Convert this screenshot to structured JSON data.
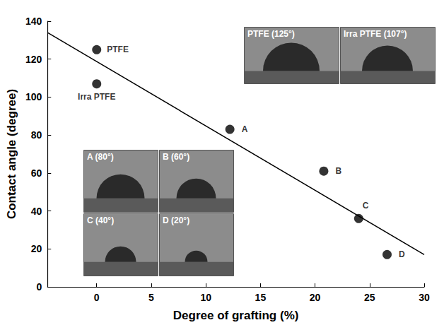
{
  "chart_data": {
    "type": "scatter",
    "x_label": "Degree of grafting (%)",
    "y_label": "Contact angle (degree)",
    "points": [
      {
        "label": "PTFE",
        "x": 0,
        "y": 125
      },
      {
        "label": "Irra PTFE",
        "x": 0,
        "y": 107
      },
      {
        "label": "A",
        "x": 12.2,
        "y": 83
      },
      {
        "label": "B",
        "x": 20.8,
        "y": 61
      },
      {
        "label": "C",
        "x": 24,
        "y": 36
      },
      {
        "label": "D",
        "x": 26.6,
        "y": 17
      }
    ],
    "color": "#000000",
    "marker": "circle",
    "trend_line": {
      "x": [
        -4.5,
        30
      ],
      "y": [
        134,
        17
      ],
      "line_style": "solid"
    },
    "xlim": [
      -4.5,
      30
    ],
    "xticks": [
      0,
      5,
      10,
      15,
      20,
      25,
      30
    ],
    "ylim": [
      0,
      140
    ],
    "yticks": [
      0,
      20,
      40,
      60,
      80,
      100,
      120,
      140
    ],
    "grid": false,
    "insets": [
      {
        "panels": [
          "PTFE (125°)",
          "Irra PTFE (107°)"
        ]
      },
      {
        "panels": [
          "A (80°)",
          "B (60°)",
          "C (40°)",
          "D (20°)"
        ]
      }
    ]
  }
}
